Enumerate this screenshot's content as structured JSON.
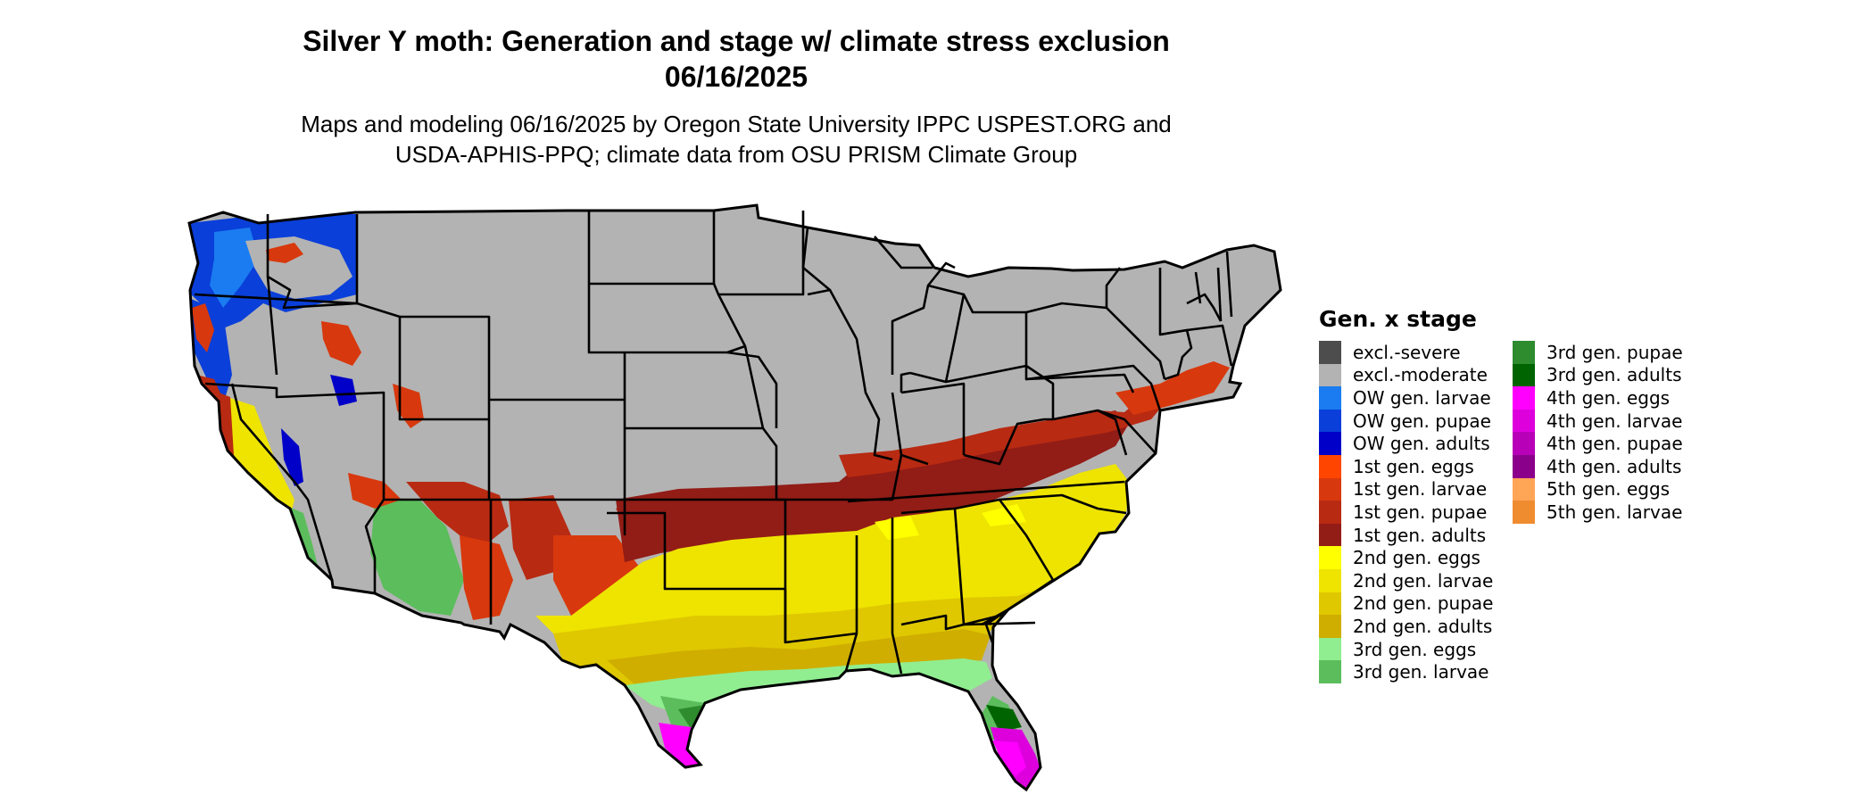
{
  "title": {
    "line1": "Silver Y moth: Generation and stage w/ climate stress exclusion",
    "line2": "06/16/2025"
  },
  "subtitle": {
    "line1": "Maps and modeling 06/16/2025 by Oregon State University IPPC USPEST.ORG and",
    "line2": "USDA-APHIS-PPQ; climate data from OSU PRISM Climate Group"
  },
  "legend": {
    "title": "Gen. x stage",
    "column1": [
      {
        "label": "excl.-severe",
        "color": "#4d4d4d"
      },
      {
        "label": "excl.-moderate",
        "color": "#b3b3b3"
      },
      {
        "label": "OW gen. larvae",
        "color": "#1a7cf0"
      },
      {
        "label": "OW gen. pupae",
        "color": "#0a3fd9"
      },
      {
        "label": "OW gen. adults",
        "color": "#0000c8"
      },
      {
        "label": "1st gen. eggs",
        "color": "#ff4500"
      },
      {
        "label": "1st gen. larvae",
        "color": "#d8380d"
      },
      {
        "label": "1st gen. pupae",
        "color": "#b82a12"
      },
      {
        "label": "1st gen. adults",
        "color": "#921c16"
      },
      {
        "label": "2nd gen. eggs",
        "color": "#ffff00"
      },
      {
        "label": "2nd gen. larvae",
        "color": "#eee400"
      },
      {
        "label": "2nd gen. pupae",
        "color": "#dfc800"
      },
      {
        "label": "2nd gen. adults",
        "color": "#cfae00"
      },
      {
        "label": "3rd gen. eggs",
        "color": "#90ee90"
      },
      {
        "label": "3rd gen. larvae",
        "color": "#5cbd5c"
      }
    ],
    "column2": [
      {
        "label": "3rd gen. pupae",
        "color": "#2e8b2e"
      },
      {
        "label": "3rd gen. adults",
        "color": "#006400"
      },
      {
        "label": "4th gen. eggs",
        "color": "#ff00ff"
      },
      {
        "label": "4th gen. larvae",
        "color": "#dd00dd"
      },
      {
        "label": "4th gen. pupae",
        "color": "#b800b8"
      },
      {
        "label": "4th gen. adults",
        "color": "#8b008b"
      },
      {
        "label": "5th gen. eggs",
        "color": "#ffa556"
      },
      {
        "label": "5th gen. larvae",
        "color": "#f08c30"
      }
    ]
  },
  "map": {
    "region": "conterminous-united-states",
    "boundaries": "state-outlines",
    "background_class": "excl.-moderate"
  }
}
